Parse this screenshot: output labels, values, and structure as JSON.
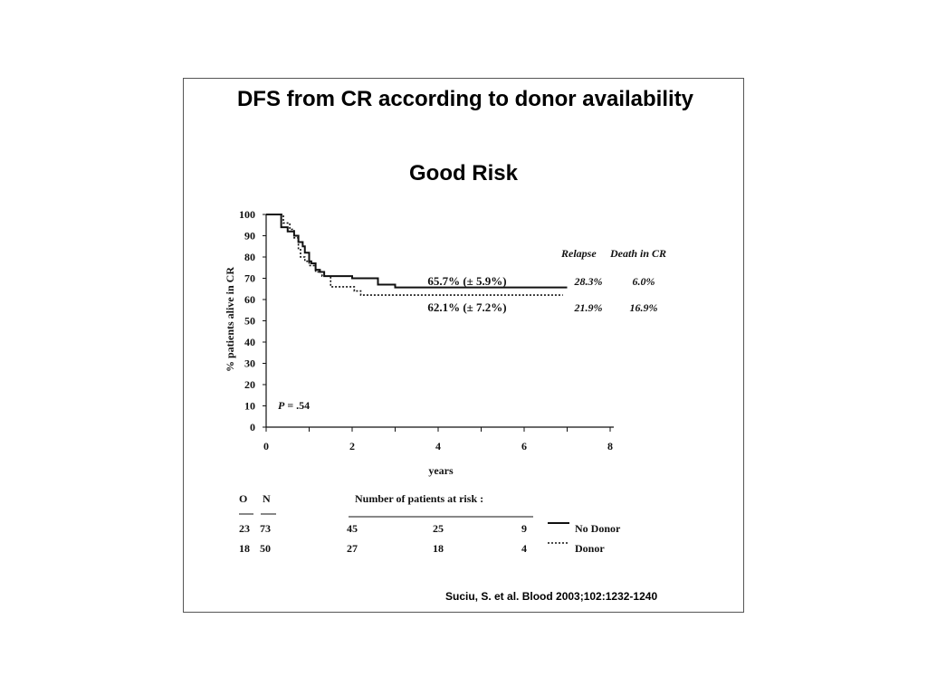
{
  "slide": {
    "title": "DFS from CR according to donor availability",
    "subtitle": "Good Risk",
    "citation": "Suciu, S. et al. Blood 2003;102:1232-1240"
  },
  "chart_data": {
    "type": "line",
    "title": "Good Risk",
    "xlabel": "years",
    "ylabel": "% patients alive in CR",
    "xlim": [
      0,
      8
    ],
    "ylim": [
      0,
      100
    ],
    "xticks": [
      0,
      2,
      4,
      6,
      8
    ],
    "yticks": [
      0,
      10,
      20,
      30,
      40,
      50,
      60,
      70,
      80,
      90,
      100
    ],
    "grid": false,
    "pvalue_label": "P = .54",
    "series": [
      {
        "name": "No Donor",
        "style": "solid",
        "color": "#111111",
        "step_x": [
          0,
          0.35,
          0.5,
          0.65,
          0.75,
          0.85,
          0.9,
          1.0,
          1.05,
          1.15,
          1.25,
          1.35,
          1.5,
          2.0,
          2.6,
          2.8,
          3.0,
          7.0
        ],
        "step_y": [
          100,
          94,
          92,
          90,
          87,
          85,
          82,
          78,
          77,
          74,
          73,
          71,
          71,
          70,
          67,
          67,
          65.7,
          65.7
        ],
        "annotation": "65.7% (± 5.9%)",
        "relapse": "28.3%",
        "death_in_cr": "6.0%"
      },
      {
        "name": "Donor",
        "style": "dotted",
        "color": "#111111",
        "step_x": [
          0,
          0.4,
          0.55,
          0.65,
          0.75,
          0.8,
          0.9,
          1.0,
          1.15,
          1.3,
          1.5,
          2.05,
          2.2,
          6.9
        ],
        "step_y": [
          100,
          96,
          93,
          89,
          84,
          80,
          78,
          76,
          73,
          71,
          66,
          64,
          62.1,
          62.1
        ],
        "annotation": "62.1% (± 7.2%)",
        "relapse": "21.9%",
        "death_in_cr": "16.9%"
      }
    ],
    "table_header_relapse": "Relapse",
    "table_header_death": "Death in CR",
    "risk_table": {
      "col_o": "O",
      "col_n": "N",
      "header": "Number of patients at risk :",
      "rows": [
        {
          "o": "23",
          "n": "73",
          "at_risk": [
            "45",
            "25",
            "9"
          ],
          "legend": "No Donor"
        },
        {
          "o": "18",
          "n": "50",
          "at_risk": [
            "27",
            "18",
            "4"
          ],
          "legend": "Donor"
        }
      ]
    }
  }
}
